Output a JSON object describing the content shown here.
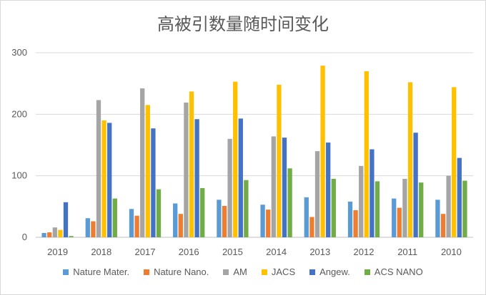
{
  "chart_data": {
    "type": "bar",
    "title": "高被引数量随时间变化",
    "categories": [
      "2019",
      "2018",
      "2017",
      "2016",
      "2015",
      "2014",
      "2013",
      "2012",
      "2011",
      "2010"
    ],
    "ylim": [
      0,
      300
    ],
    "yticks": [
      0,
      100,
      200,
      300
    ],
    "grid": true,
    "legend_position": "bottom",
    "series": [
      {
        "name": "Nature Mater.",
        "color": "#5B9BD5",
        "values": [
          7,
          31,
          46,
          55,
          61,
          53,
          65,
          58,
          63,
          61
        ]
      },
      {
        "name": "Nature Nano.",
        "color": "#ED7D31",
        "values": [
          8,
          26,
          35,
          38,
          51,
          45,
          33,
          44,
          48,
          38
        ]
      },
      {
        "name": "AM",
        "color": "#A5A5A5",
        "values": [
          16,
          223,
          242,
          219,
          160,
          164,
          140,
          116,
          95,
          100
        ]
      },
      {
        "name": "JACS",
        "color": "#FFC000",
        "values": [
          12,
          190,
          215,
          237,
          253,
          248,
          279,
          270,
          252,
          244
        ]
      },
      {
        "name": "Angew.",
        "color": "#4472C4",
        "values": [
          57,
          186,
          177,
          192,
          193,
          162,
          154,
          143,
          170,
          129
        ]
      },
      {
        "name": "ACS NANO",
        "color": "#70AD47",
        "values": [
          2,
          63,
          78,
          80,
          93,
          112,
          95,
          91,
          89,
          92
        ]
      }
    ]
  }
}
